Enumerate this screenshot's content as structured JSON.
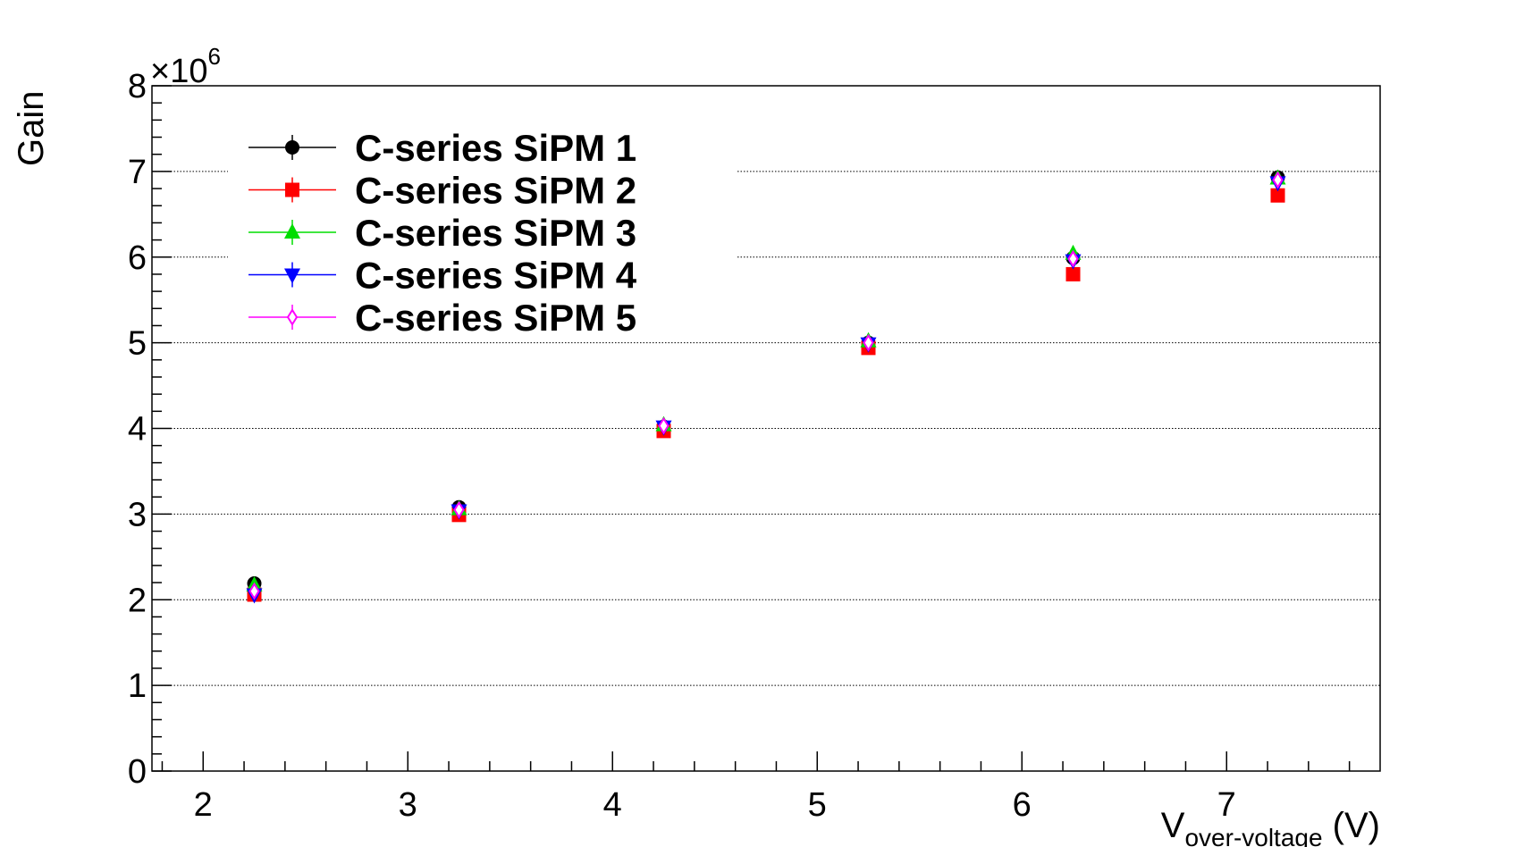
{
  "chart_data": {
    "type": "scatter",
    "xlabel": {
      "main": "V",
      "sub": "over-voltage",
      "unit": " (V)"
    },
    "ylabel": "Gain",
    "y_multiplier": {
      "base": "×10",
      "exp": "6"
    },
    "xlim": [
      1.75,
      7.75
    ],
    "ylim": [
      0,
      8
    ],
    "x_ticks": [
      "2",
      "3",
      "4",
      "5",
      "6",
      "7"
    ],
    "y_ticks": [
      "0",
      "1",
      "2",
      "3",
      "4",
      "5",
      "6",
      "7",
      "8"
    ],
    "grid": "y-dotted",
    "legend_position": "top-left",
    "x": [
      2.25,
      3.25,
      4.25,
      5.25,
      6.25,
      7.25
    ],
    "series": [
      {
        "name": "C-series SiPM 1",
        "color": "#000000",
        "marker": "circle",
        "values": [
          2.19,
          3.08,
          4.02,
          5.0,
          5.99,
          6.93
        ]
      },
      {
        "name": "C-series SiPM 2",
        "color": "#ff0000",
        "marker": "square",
        "values": [
          2.06,
          2.99,
          3.97,
          4.94,
          5.8,
          6.72
        ]
      },
      {
        "name": "C-series SiPM 3",
        "color": "#00dd00",
        "marker": "triangle-up",
        "values": [
          2.17,
          3.06,
          4.04,
          5.02,
          6.04,
          6.92
        ]
      },
      {
        "name": "C-series SiPM 4",
        "color": "#0000ff",
        "marker": "triangle-down",
        "values": [
          2.06,
          3.04,
          4.02,
          4.99,
          5.96,
          6.87
        ]
      },
      {
        "name": "C-series SiPM 5",
        "color": "#ff00ff",
        "marker": "diamond-open",
        "values": [
          2.1,
          3.05,
          4.03,
          5.0,
          5.98,
          6.9
        ]
      }
    ]
  }
}
